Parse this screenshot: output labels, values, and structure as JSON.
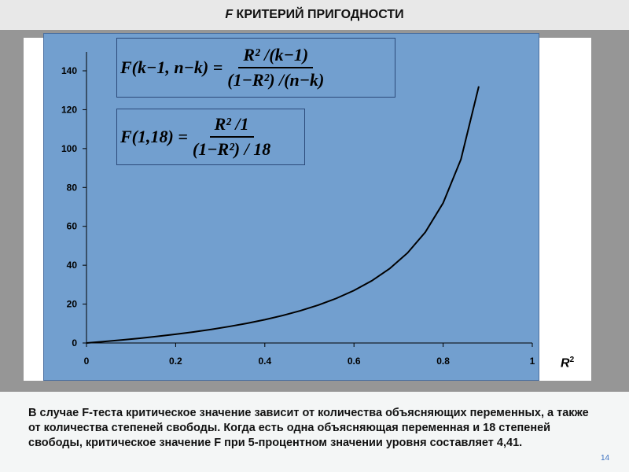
{
  "slide": {
    "title_italic": "F",
    "title_rest": " КРИТЕРИЙ ПРИГОДНОСТИ",
    "caption": "В случае F-теста критическое значение зависит от количества объясняющих переменных, а также от количества степеней свободы. Когда есть одна объясняющая переменная и 18 степеней свободы, критическое значение F при 5-процентном значении уровня составляет 4,41.",
    "page_number": "14"
  },
  "formulas": {
    "general": {
      "lhs": "F(k−1, n−k) =",
      "numerator": "R² /(k−1)",
      "denominator": "(1−R²) /(n−k)"
    },
    "specific": {
      "lhs": "F(1,18) =",
      "numerator": "R² /1",
      "denominator": "(1−R²) / 18"
    }
  },
  "chart_data": {
    "type": "line",
    "xlabel": "R",
    "xlabel_sup": "2",
    "ylabel": "",
    "xlim": [
      0,
      1
    ],
    "ylim": [
      0,
      140
    ],
    "xticks": [
      "0",
      "0.2",
      "0.4",
      "0.6",
      "0.8",
      "1"
    ],
    "yticks": [
      "0",
      "20",
      "40",
      "60",
      "80",
      "100",
      "120",
      "140"
    ],
    "grid": false,
    "colors": {
      "plot_background": "#729fcf",
      "line": "#000000"
    },
    "series": [
      {
        "x": [
          0,
          0.04,
          0.08,
          0.12,
          0.16,
          0.2,
          0.24,
          0.28,
          0.32,
          0.36,
          0.4,
          0.44,
          0.48,
          0.52,
          0.56,
          0.6,
          0.64,
          0.68,
          0.72,
          0.76,
          0.8,
          0.84,
          0.88
        ],
        "y": [
          0,
          0.75,
          1.57,
          2.45,
          3.43,
          4.5,
          5.68,
          7.0,
          8.47,
          10.13,
          12.0,
          14.14,
          16.62,
          19.5,
          22.91,
          27.0,
          32.0,
          38.25,
          46.29,
          57.0,
          72.0,
          94.5,
          132.0
        ]
      }
    ]
  }
}
